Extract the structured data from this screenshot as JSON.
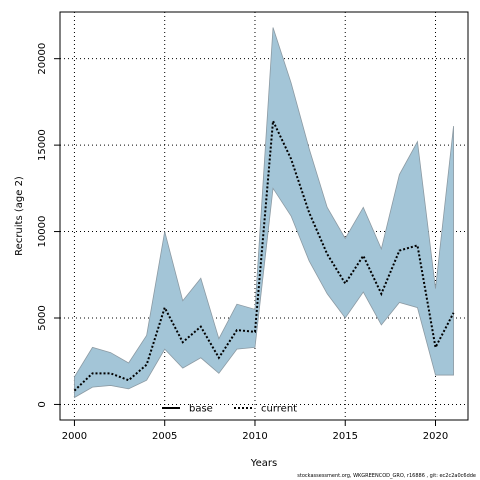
{
  "chart_data": {
    "type": "area",
    "xlabel": "Years",
    "ylabel": "Recruits (age 2)",
    "xlim": [
      1999.2,
      2021.8
    ],
    "ylim": [
      -900,
      22700
    ],
    "x_ticks": [
      2000,
      2005,
      2010,
      2015,
      2020
    ],
    "y_ticks": [
      0,
      5000,
      10000,
      15000,
      20000
    ],
    "grid": true,
    "legend": {
      "placement": "bottom-center",
      "entries": [
        {
          "name": "base",
          "style": "solid"
        },
        {
          "name": "current",
          "style": "dotted"
        }
      ]
    },
    "x": [
      2000,
      2001,
      2002,
      2003,
      2004,
      2005,
      2006,
      2007,
      2008,
      2009,
      2010,
      2011,
      2012,
      2013,
      2014,
      2015,
      2016,
      2017,
      2018,
      2019,
      2020,
      2021
    ],
    "series": [
      {
        "name": "current",
        "values": [
          800,
          1800,
          1800,
          1400,
          2300,
          5600,
          3600,
          4500,
          2700,
          4300,
          4200,
          16400,
          14200,
          11100,
          8700,
          7000,
          8600,
          6400,
          8900,
          9200,
          3300,
          5300
        ]
      },
      {
        "name": "base",
        "values": [
          800,
          1800,
          1800,
          1400,
          2300,
          5600,
          3600,
          4500,
          2700,
          4300,
          4200,
          16400,
          14200,
          11100,
          8700,
          7000,
          8600,
          6400,
          8900,
          9200,
          3300,
          5300
        ]
      }
    ],
    "band": {
      "lower": [
        400,
        1000,
        1100,
        900,
        1400,
        3200,
        2100,
        2700,
        1800,
        3200,
        3300,
        12500,
        10900,
        8300,
        6400,
        5000,
        6500,
        4600,
        5900,
        5600,
        1700,
        1700
      ],
      "upper": [
        1600,
        3300,
        3000,
        2400,
        4000,
        10000,
        6000,
        7300,
        3800,
        5800,
        5500,
        21800,
        18600,
        14800,
        11400,
        9600,
        11400,
        9000,
        13300,
        15200,
        6700,
        16100
      ]
    },
    "colors": {
      "band_fill": "#a3c5d7",
      "band_edge": "#8c9aa3",
      "line": "#000000",
      "grid": "#000000",
      "background": "#ffffff"
    }
  },
  "footnote": "stockassessment.org, WKGREENCOD_GRO, r16886 , git: ec2c2a0c6dde"
}
